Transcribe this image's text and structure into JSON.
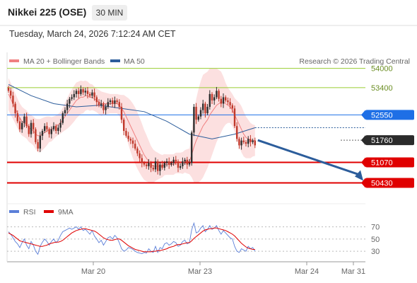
{
  "header": {
    "title": "Nikkei 225 (OSE)",
    "timeframe": "30 MIN",
    "datetime": "Tuesday, March 24, 2026 7:12:24 AM CET"
  },
  "legend": {
    "bollinger": "MA 20 + Bollinger Bands",
    "ma50": "MA 50",
    "rsi": "RSI",
    "rsi_ma": "9MA"
  },
  "watermark": "Research © 2026 Trading Central",
  "colors": {
    "candle_up": "#2e2e2e",
    "candle_down": "#c0392b",
    "bollinger": "#fbd5d5",
    "ma20": "#f08080",
    "ma50": "#2c5d9b",
    "resistance": "#9acd32",
    "support": "#e00000",
    "pivot": "#1e6fe6",
    "arrow": "#2c5d9b",
    "rsi_line": "#5b7fd8",
    "rsi_ma": "#e00000"
  },
  "chart_data": {
    "type": "candlestick",
    "ylim": [
      49800,
      54500
    ],
    "x_ticks": [
      "Mar 20",
      "Mar 23",
      "Mar 24",
      "Mar 31"
    ],
    "current_price": 51760,
    "levels": [
      {
        "value": 54000,
        "label": "54000",
        "kind": "resistance"
      },
      {
        "value": 53400,
        "label": "53400",
        "kind": "resistance"
      },
      {
        "value": 52550,
        "label": "52550",
        "kind": "pivot"
      },
      {
        "value": 51760,
        "label": "51760",
        "kind": "current"
      },
      {
        "value": 51070,
        "label": "51070",
        "kind": "support"
      },
      {
        "value": 50430,
        "label": "50430",
        "kind": "support"
      }
    ],
    "forecast_target": 50430,
    "close": [
      53300,
      53150,
      52900,
      52600,
      52350,
      52100,
      52300,
      52500,
      52200,
      51950,
      52300,
      52100,
      51700,
      51500,
      51900,
      52050,
      52200,
      52100,
      51950,
      52100,
      52200,
      52050,
      52150,
      52300,
      52600,
      52700,
      52900,
      53050,
      53100,
      53200,
      53300,
      53200,
      53350,
      53250,
      53300,
      53200,
      53150,
      53250,
      53100,
      52950,
      52850,
      52900,
      52700,
      52800,
      52950,
      53000,
      52900,
      53000,
      52950,
      52800,
      52400,
      52050,
      51900,
      51800,
      51750,
      51650,
      51500,
      51350,
      51200,
      51050,
      51000,
      50950,
      51050,
      50900,
      50850,
      51100,
      50800,
      51000,
      50900,
      51050,
      51100,
      51000,
      51050,
      51150,
      51100,
      50900,
      50950,
      51100,
      51150,
      51000,
      51050,
      52000,
      52800,
      52400,
      52500,
      52700,
      52900,
      52600,
      52800,
      53200,
      53000,
      53100,
      53300,
      53050,
      52900,
      53100,
      53000,
      52950,
      52850,
      52750,
      52200,
      51800,
      51600,
      51750,
      51700,
      51650,
      51800,
      51700,
      51750,
      51600
    ],
    "ma20": [
      53200,
      53050,
      52900,
      52750,
      52600,
      52450,
      52350,
      52300,
      52250,
      52150,
      52100,
      52050,
      51950,
      51900,
      51900,
      51950,
      52000,
      52050,
      52100,
      52100,
      52150,
      52200,
      52250,
      52300,
      52400,
      52500,
      52600,
      52700,
      52800,
      52900,
      53000,
      53050,
      53100,
      53100,
      53150,
      53150,
      53100,
      53100,
      53050,
      53000,
      52950,
      52900,
      52900,
      52900,
      52900,
      52900,
      52900,
      52900,
      52900,
      52850,
      52750,
      52650,
      52500,
      52350,
      52200,
      52050,
      51900,
      51750,
      51600,
      51450,
      51300,
      51200,
      51100,
      51000,
      50950,
      50950,
      50950,
      50950,
      50950,
      51000,
      51000,
      51000,
      51000,
      51000,
      51050,
      51050,
      51050,
      51050,
      51100,
      51100,
      51100,
      51300,
      51550,
      51750,
      51900,
      52050,
      52200,
      52300,
      52400,
      52550,
      52650,
      52750,
      52850,
      52900,
      52950,
      52950,
      52900,
      52850,
      52800,
      52700,
      52550,
      52400,
      52250,
      52100,
      51950,
      51850,
      51800,
      51750,
      51750,
      51750
    ],
    "bb_width": [
      500,
      500,
      480,
      470,
      460,
      460,
      450,
      440,
      440,
      440,
      440,
      450,
      480,
      520,
      520,
      500,
      480,
      450,
      400,
      380,
      350,
      330,
      330,
      340,
      380,
      430,
      480,
      520,
      540,
      560,
      560,
      540,
      520,
      500,
      470,
      440,
      420,
      400,
      380,
      370,
      380,
      380,
      360,
      340,
      320,
      300,
      300,
      300,
      300,
      330,
      420,
      520,
      620,
      720,
      800,
      850,
      880,
      880,
      860,
      830,
      780,
      720,
      650,
      580,
      520,
      460,
      420,
      380,
      350,
      330,
      320,
      320,
      320,
      320,
      320,
      320,
      320,
      340,
      350,
      380,
      400,
      700,
      1100,
      1300,
      1450,
      1550,
      1600,
      1550,
      1500,
      1450,
      1350,
      1250,
      1150,
      1050,
      950,
      800,
      650,
      550,
      500,
      500,
      520,
      600,
      680,
      720,
      700,
      650,
      600,
      550,
      500,
      480
    ],
    "ma50_points": [
      [
        0,
        53500
      ],
      [
        10,
        53150
      ],
      [
        20,
        52900
      ],
      [
        30,
        52800
      ],
      [
        40,
        52850
      ],
      [
        50,
        52750
      ],
      [
        60,
        52650
      ],
      [
        70,
        52350
      ],
      [
        80,
        51950
      ],
      [
        90,
        51800
      ],
      [
        100,
        51950
      ],
      [
        109,
        52150
      ]
    ],
    "rsi": [
      62,
      58,
      52,
      46,
      42,
      36,
      44,
      50,
      40,
      34,
      46,
      40,
      30,
      25,
      38,
      45,
      50,
      46,
      40,
      46,
      50,
      44,
      48,
      56,
      62,
      64,
      66,
      68,
      66,
      68,
      70,
      66,
      70,
      64,
      66,
      62,
      58,
      64,
      55,
      50,
      44,
      48,
      40,
      46,
      52,
      54,
      50,
      56,
      52,
      44,
      34,
      30,
      32,
      36,
      35,
      33,
      30,
      28,
      27,
      26,
      28,
      27,
      34,
      30,
      28,
      38,
      28,
      36,
      34,
      42,
      44,
      40,
      42,
      46,
      44,
      38,
      40,
      46,
      48,
      42,
      44,
      65,
      76,
      60,
      62,
      68,
      72,
      62,
      66,
      72,
      66,
      68,
      72,
      64,
      58,
      64,
      60,
      56,
      52,
      50,
      38,
      30,
      28,
      34,
      32,
      30,
      38,
      34,
      36,
      30
    ],
    "rsi_ma": [
      60,
      58,
      56,
      53,
      50,
      47,
      46,
      45,
      44,
      43,
      42,
      41,
      40,
      39,
      38,
      38,
      39,
      40,
      42,
      43,
      44,
      45,
      45,
      46,
      48,
      51,
      54,
      57,
      60,
      62,
      64,
      65,
      66,
      67,
      67,
      66,
      65,
      64,
      63,
      61,
      58,
      55,
      52,
      50,
      49,
      48,
      48,
      49,
      50,
      50,
      48,
      45,
      42,
      39,
      37,
      35,
      33,
      32,
      31,
      30,
      29,
      29,
      29,
      29,
      30,
      30,
      31,
      31,
      32,
      33,
      34,
      36,
      37,
      38,
      40,
      41,
      41,
      42,
      43,
      44,
      44,
      47,
      51,
      54,
      57,
      60,
      63,
      65,
      66,
      67,
      67,
      68,
      68,
      67,
      66,
      65,
      64,
      62,
      60,
      58,
      55,
      51,
      47,
      43,
      40,
      37,
      35,
      34,
      33,
      33
    ],
    "rsi_ylim": [
      15,
      80
    ],
    "rsi_ticks": [
      70,
      50,
      30
    ]
  }
}
